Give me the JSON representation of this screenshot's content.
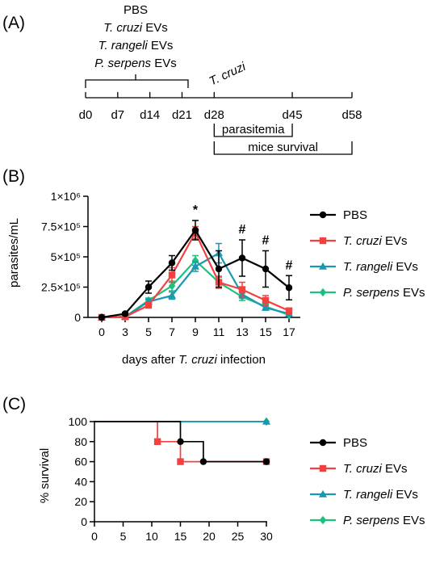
{
  "panel_a": {
    "label": "(A)",
    "treatments": [
      "PBS",
      "T. cruzi EVs",
      "T. rangeli EVs",
      "P. serpens EVs"
    ],
    "treatments_italic": [
      "",
      "T. cruzi",
      "T. rangeli",
      "P. serpens"
    ],
    "treatments_suffix": [
      "PBS",
      " EVs",
      " EVs",
      " EVs"
    ],
    "infection_label": "T. cruzi",
    "day_labels": [
      "d0",
      "d7",
      "d14",
      "d21",
      "d28",
      "d45",
      "d58"
    ],
    "days": [
      0,
      7,
      14,
      21,
      28,
      45,
      58
    ],
    "periods": [
      {
        "label": "parasitemia",
        "start_day": 28,
        "end_day": 45
      },
      {
        "label": "mice survival",
        "start_day": 28,
        "end_day": 58
      }
    ]
  },
  "chart_data": [
    {
      "panel": "(B)",
      "type": "line",
      "xlabel_prefix": "days after ",
      "xlabel_italic": "T. cruzi",
      "xlabel_suffix": " infection",
      "xlabel": "days after T. cruzi infection",
      "ylabel": "parasites/mL",
      "x": [
        0,
        3,
        5,
        7,
        9,
        11,
        13,
        15,
        17
      ],
      "x_tick_labels": [
        "0",
        "3",
        "5",
        "7",
        "9",
        "11",
        "13",
        "15",
        "17"
      ],
      "ylim": [
        0,
        1000000
      ],
      "y_ticks": [
        0,
        250000,
        500000,
        750000,
        1000000
      ],
      "y_tick_labels": [
        "0",
        "2.5×10⁵",
        "5×10⁵",
        "7.5×10⁵",
        "1×10⁶"
      ],
      "series": [
        {
          "name": "PBS",
          "name_italic": "",
          "name_suffix": "PBS",
          "color": "#000000",
          "marker": "circle",
          "values": [
            0,
            30000,
            250000,
            450000,
            720000,
            400000,
            490000,
            400000,
            245000
          ],
          "errors": [
            0,
            10000,
            50000,
            60000,
            80000,
            150000,
            150000,
            150000,
            100000
          ]
        },
        {
          "name": "T. cruzi EVs",
          "name_italic": "T. cruzi",
          "name_suffix": " EVs",
          "color": "#f4403f",
          "marker": "square",
          "values": [
            0,
            5000,
            100000,
            350000,
            700000,
            290000,
            230000,
            140000,
            55000
          ],
          "errors": [
            0,
            5000,
            20000,
            60000,
            50000,
            50000,
            60000,
            40000,
            20000
          ]
        },
        {
          "name": "T. rangeli EVs",
          "name_italic": "T. rangeli",
          "name_suffix": " EVs",
          "color": "#1a97b1",
          "marker": "triangle",
          "values": [
            0,
            5000,
            130000,
            180000,
            420000,
            530000,
            190000,
            80000,
            30000
          ],
          "errors": [
            0,
            5000,
            20000,
            30000,
            40000,
            80000,
            30000,
            20000,
            10000
          ]
        },
        {
          "name": "P. serpens EVs",
          "name_italic": "P. serpens",
          "name_suffix": " EVs",
          "color": "#1cc17e",
          "marker": "diamond",
          "values": [
            0,
            5000,
            140000,
            260000,
            470000,
            290000,
            170000,
            90000,
            20000
          ],
          "errors": [
            0,
            5000,
            20000,
            40000,
            40000,
            40000,
            30000,
            20000,
            10000
          ]
        }
      ],
      "annotations": [
        {
          "text": "*",
          "x": 9
        },
        {
          "text": "#",
          "x": 13
        },
        {
          "text": "#",
          "x": 15
        },
        {
          "text": "#",
          "x": 17
        }
      ]
    },
    {
      "panel": "(C)",
      "type": "line",
      "step": true,
      "ylabel": "% survival",
      "xlim": [
        0,
        30
      ],
      "x_ticks": [
        0,
        5,
        10,
        15,
        20,
        25,
        30
      ],
      "x_tick_labels": [
        "0",
        "5",
        "10",
        "15",
        "20",
        "25",
        "30"
      ],
      "ylim": [
        0,
        100
      ],
      "y_ticks": [
        0,
        20,
        40,
        60,
        80,
        100
      ],
      "y_tick_labels": [
        "0",
        "20",
        "40",
        "60",
        "80",
        "100"
      ],
      "series": [
        {
          "name": "PBS",
          "name_italic": "",
          "name_suffix": "PBS",
          "color": "#000000",
          "marker": "circle",
          "steps": [
            [
              0,
              100
            ],
            [
              15,
              80
            ],
            [
              19,
              60
            ],
            [
              30,
              60
            ]
          ]
        },
        {
          "name": "T. cruzi EVs",
          "name_italic": "T. cruzi",
          "name_suffix": " EVs",
          "color": "#f4403f",
          "marker": "square",
          "steps": [
            [
              0,
              100
            ],
            [
              11,
              80
            ],
            [
              15,
              60
            ],
            [
              30,
              60
            ]
          ]
        },
        {
          "name": "T. rangeli EVs",
          "name_italic": "T. rangeli",
          "name_suffix": " EVs",
          "color": "#1a97b1",
          "marker": "triangle",
          "steps": [
            [
              0,
              100
            ],
            [
              30,
              100
            ]
          ]
        },
        {
          "name": "P. serpens EVs",
          "name_italic": "P. serpens",
          "name_suffix": " EVs",
          "color": "#1cc17e",
          "marker": "diamond",
          "steps": [
            [
              0,
              100
            ],
            [
              30,
              100
            ]
          ]
        }
      ]
    }
  ]
}
